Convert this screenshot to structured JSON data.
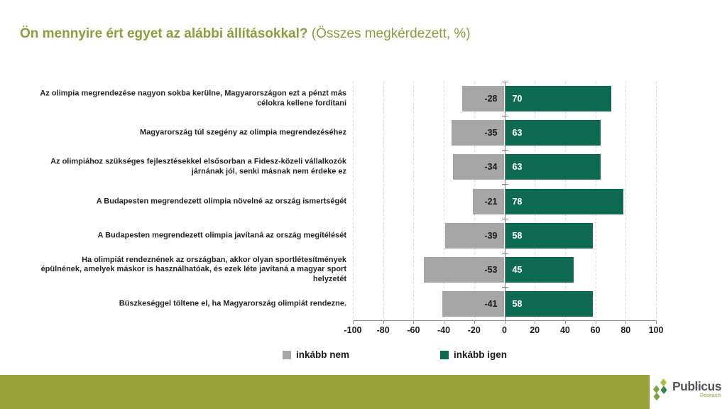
{
  "title": {
    "main": "Ön mennyire ért egyet az alábbi állításokkal?",
    "suffix": " (Összes megkérdezett, %)"
  },
  "chart_data": {
    "type": "bar",
    "orientation": "horizontal-diverging",
    "categories": [
      "Az olimpia megrendezése nagyon sokba kerülne, Magyarországon ezt a pénzt más célokra kellene fordítani",
      "Magyarország túl szegény az olimpia megrendezéséhez",
      "Az olimpiához szükséges fejlesztésekkel elsősorban a Fidesz-közeli vállalkozók járnának jól, senki másnak nem érdeke ez",
      "A Budapesten megrendezett olimpia növelné az ország ismertségét",
      "A Budapesten megrendezett olimpia javítaná az ország megítélését",
      "Ha olimpiát rendeznének az országban, akkor olyan sportlétesítmények épülnének, amelyek máskor is használhatóak, és ezek léte javítaná a magyar sport helyzetét",
      "Büszkeséggel töltene el, ha Magyarország olimpiát rendezne."
    ],
    "series": [
      {
        "name": "inkább nem",
        "color": "#a6a6a6",
        "values": [
          -28,
          -35,
          -34,
          -21,
          -39,
          -53,
          -41
        ]
      },
      {
        "name": "inkább igen",
        "color": "#0e6a50",
        "values": [
          70,
          63,
          63,
          78,
          58,
          45,
          58
        ]
      }
    ],
    "xlim": [
      -100,
      100
    ],
    "xticks": [
      -100,
      -80,
      -60,
      -40,
      -20,
      0,
      20,
      40,
      60,
      80,
      100
    ],
    "grid": "vertical-dashed",
    "legend_position": "bottom",
    "title": "Ön mennyire ért egyet az alábbi állításokkal? (Összes megkérdezett, %)",
    "xlabel": "",
    "ylabel": ""
  },
  "legend": [
    {
      "label": "inkább nem",
      "color": "#a6a6a6"
    },
    {
      "label": "inkább igen",
      "color": "#0e6a50"
    }
  ],
  "footer": {
    "logo_name": "Publicus",
    "logo_sub": "Research"
  },
  "colors": {
    "title_text": "#8c9c3f",
    "footer_bar": "#97a23a",
    "bar_negative": "#a6a6a6",
    "bar_positive": "#0e6a50",
    "gridline": "#d4d4d4",
    "axis_line": "#8c8c8c",
    "logo_text": "#55565a",
    "logo_sub_text": "#97a23a",
    "logo_diamond_light": "#aebe3b",
    "logo_diamond_mid": "#7aa53e",
    "logo_diamond_dark": "#2f8049"
  }
}
